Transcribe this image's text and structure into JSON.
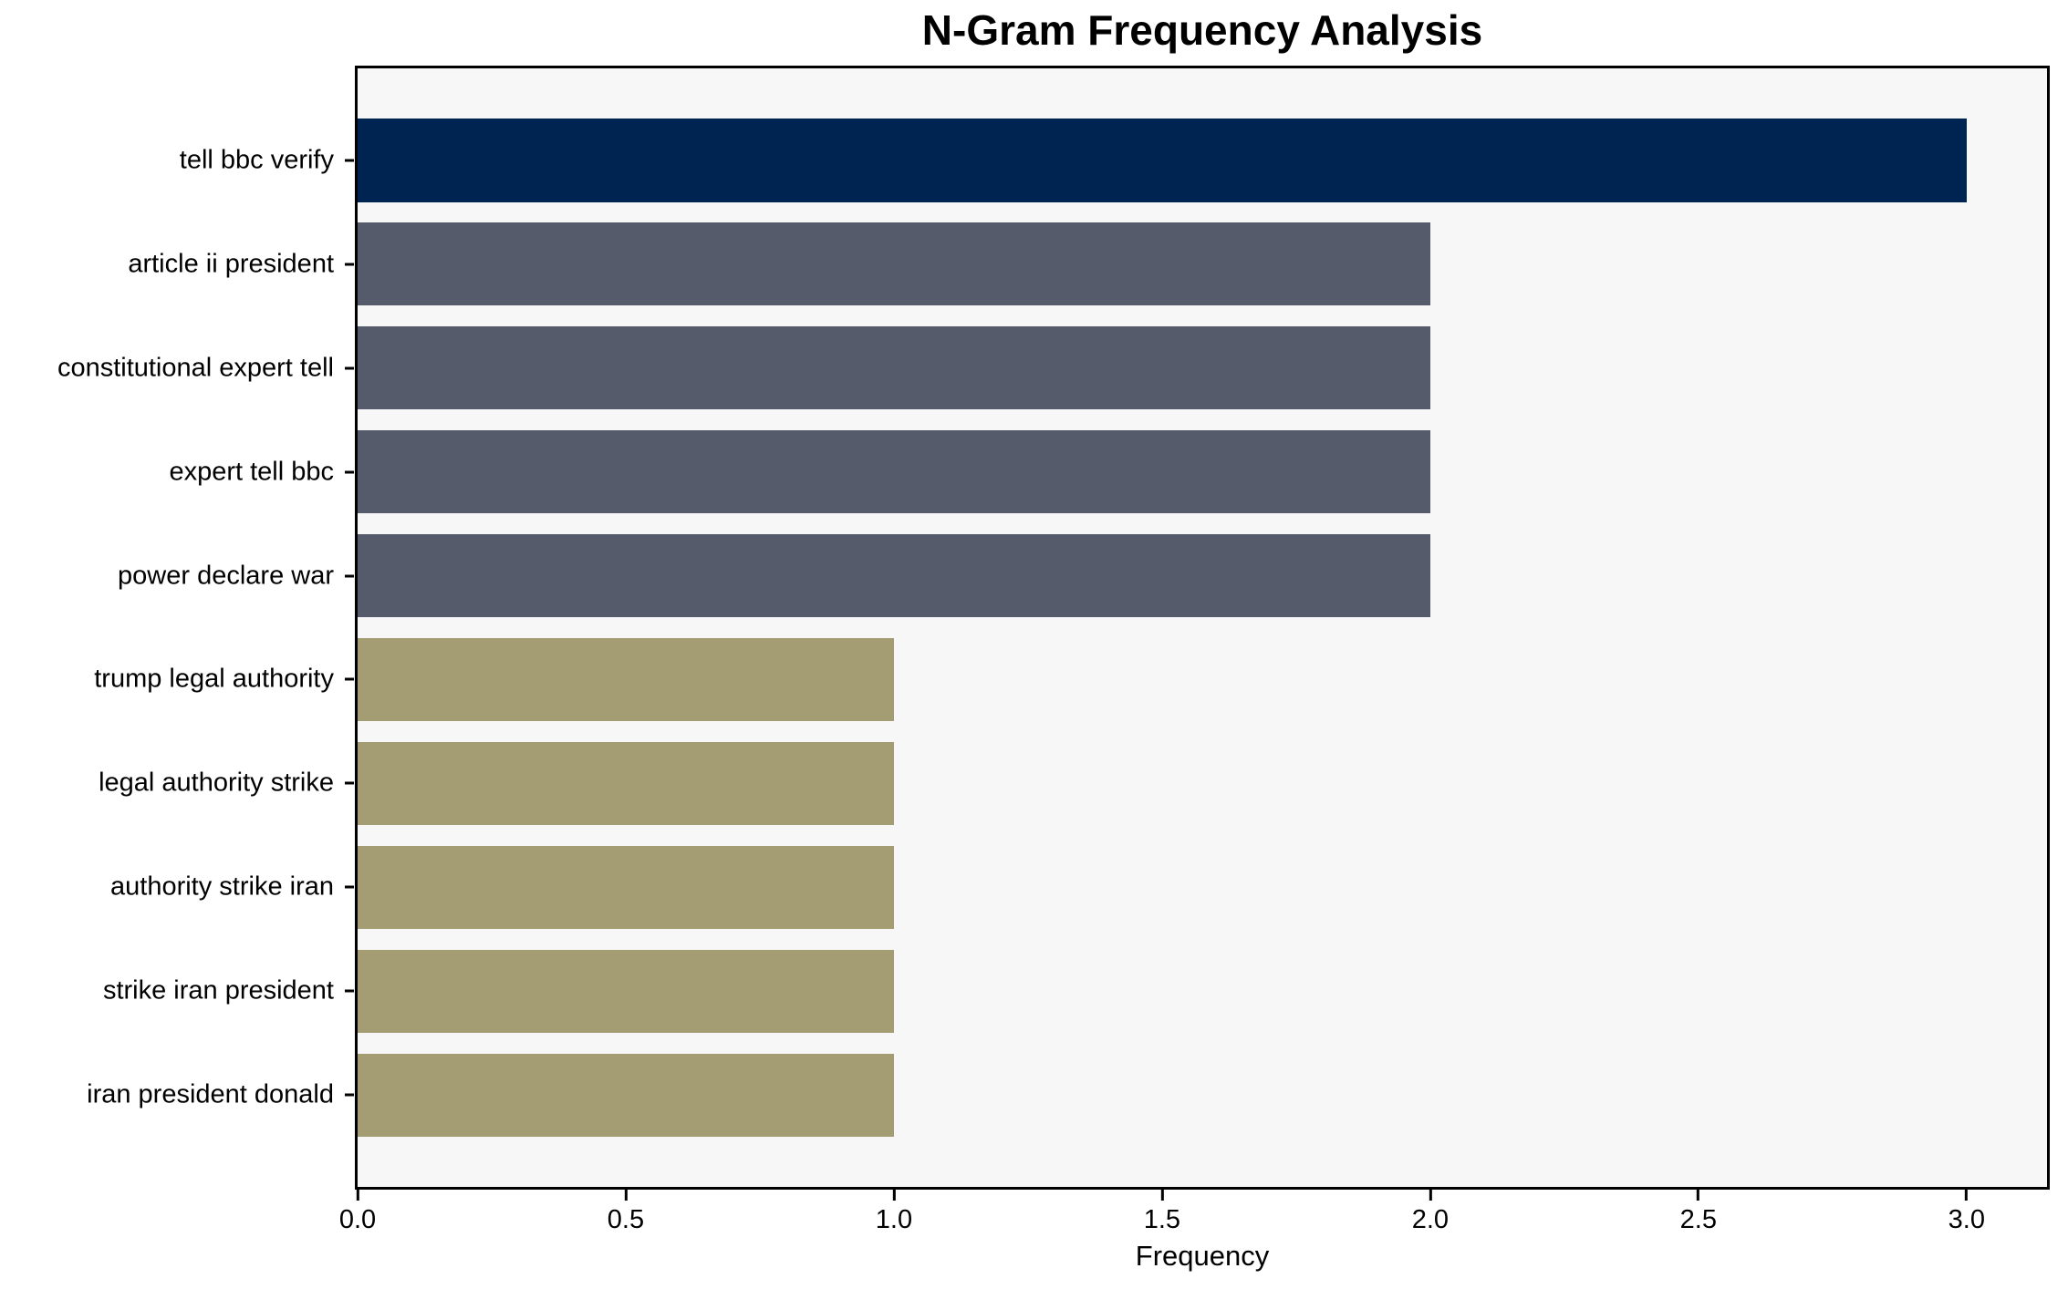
{
  "chart_data": {
    "type": "bar",
    "orientation": "horizontal",
    "title": "N-Gram Frequency Analysis",
    "xlabel": "Frequency",
    "ylabel": "",
    "categories": [
      "tell bbc verify",
      "article ii president",
      "constitutional expert tell",
      "expert tell bbc",
      "power declare war",
      "trump legal authority",
      "legal authority strike",
      "authority strike iran",
      "strike iran president",
      "iran president donald"
    ],
    "values": [
      3,
      2,
      2,
      2,
      2,
      1,
      1,
      1,
      1,
      1
    ],
    "bar_colors": [
      "#002451",
      "#565B6C",
      "#565B6C",
      "#565B6C",
      "#565B6C",
      "#A49C72",
      "#A49C72",
      "#A49C72",
      "#A49C72",
      "#A49C72"
    ],
    "x_ticks": [
      "0.0",
      "0.5",
      "1.0",
      "1.5",
      "2.0",
      "2.5",
      "3.0"
    ],
    "x_tick_values": [
      0,
      0.5,
      1.0,
      1.5,
      2.0,
      2.5,
      3.0
    ],
    "xlim": [
      0,
      3.15
    ],
    "grid": false,
    "legend_position": "none",
    "plot_background": "#F7F7F8",
    "figure_background": "#FFFFFF",
    "spine_color": "#000000"
  }
}
